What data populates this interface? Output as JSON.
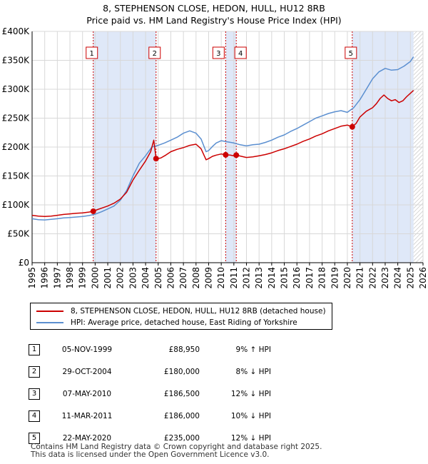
{
  "title_line1": "8, STEPHENSON CLOSE, HEDON, HULL, HU12 8RB",
  "title_line2": "Price paid vs. HM Land Registry's House Price Index (HPI)",
  "colors": {
    "price": "#cc0000",
    "hpi": "#5b8fd0",
    "band": "#dfe8f8",
    "grid": "#d8d8d8",
    "vline": "#cc0000"
  },
  "chart_data": {
    "type": "line",
    "title": "Price paid vs. HM Land Registry's House Price Index (HPI)",
    "xlabel": "",
    "ylabel": "",
    "xlim": [
      1995,
      2026
    ],
    "ylim": [
      0,
      400000
    ],
    "y_ticks": [
      0,
      50000,
      100000,
      150000,
      200000,
      250000,
      300000,
      350000,
      400000
    ],
    "y_tick_labels": [
      "£0",
      "£50K",
      "£100K",
      "£150K",
      "£200K",
      "£250K",
      "£300K",
      "£350K",
      "£400K"
    ],
    "x_ticks": [
      1995,
      1996,
      1997,
      1998,
      1999,
      2000,
      2001,
      2002,
      2003,
      2004,
      2005,
      2006,
      2007,
      2008,
      2009,
      2010,
      2011,
      2012,
      2013,
      2014,
      2015,
      2016,
      2017,
      2018,
      2019,
      2020,
      2021,
      2022,
      2023,
      2024,
      2025,
      2026
    ],
    "grid": true,
    "shaded_bands": [
      [
        1999.85,
        2004.83
      ],
      [
        2010.35,
        2011.19
      ],
      [
        2020.39,
        2025.25
      ]
    ],
    "hatched_region": [
      2025.25,
      2026
    ],
    "series": [
      {
        "name": "8, STEPHENSON CLOSE, HEDON, HULL, HU12 8RB (detached house)",
        "color": "#cc0000",
        "x": [
          1995,
          1995.5,
          1996,
          1996.5,
          1997,
          1997.5,
          1998,
          1998.5,
          1999,
          1999.5,
          1999.85,
          2000.2,
          2000.6,
          2001,
          2001.5,
          2002,
          2002.5,
          2003,
          2003.5,
          2004,
          2004.4,
          2004.65,
          2004.83,
          2005.2,
          2005.6,
          2006,
          2006.5,
          2007,
          2007.5,
          2008,
          2008.4,
          2008.8,
          2009,
          2009.3,
          2009.6,
          2010,
          2010.35,
          2010.7,
          2011,
          2011.19,
          2011.6,
          2012,
          2012.5,
          2013,
          2013.5,
          2014,
          2014.5,
          2015,
          2015.5,
          2016,
          2016.5,
          2017,
          2017.5,
          2018,
          2018.5,
          2019,
          2019.5,
          2020,
          2020.39,
          2020.7,
          2021,
          2021.5,
          2022,
          2022.3,
          2022.6,
          2022.9,
          2023.2,
          2023.5,
          2023.8,
          2024.1,
          2024.4,
          2024.7,
          2025,
          2025.25
        ],
        "y": [
          82000,
          80500,
          80000,
          80500,
          82000,
          83500,
          84500,
          85500,
          86000,
          87500,
          88950,
          92000,
          95000,
          98000,
          103000,
          110000,
          122000,
          143000,
          160000,
          176000,
          192000,
          212000,
          180000,
          181000,
          186000,
          192000,
          196000,
          199000,
          203000,
          205000,
          197000,
          178000,
          180000,
          184000,
          186000,
          188000,
          186500,
          186000,
          185000,
          186000,
          184000,
          182000,
          183000,
          185000,
          187000,
          190000,
          194000,
          197000,
          201000,
          205000,
          210000,
          214000,
          219000,
          223000,
          228000,
          232000,
          236000,
          238000,
          235000,
          241000,
          252000,
          262000,
          268000,
          275000,
          284000,
          290000,
          284000,
          280000,
          282000,
          277000,
          280000,
          287000,
          293000,
          298000
        ]
      },
      {
        "name": "HPI: Average price, detached house, East Riding of Yorkshire",
        "color": "#5b8fd0",
        "x": [
          1995,
          1995.5,
          1996,
          1996.5,
          1997,
          1997.5,
          1998,
          1998.5,
          1999,
          1999.5,
          2000,
          2000.5,
          2001,
          2001.5,
          2002,
          2002.5,
          2003,
          2003.5,
          2004,
          2004.5,
          2005,
          2005.5,
          2006,
          2006.5,
          2007,
          2007.5,
          2008,
          2008.4,
          2008.8,
          2009,
          2009.3,
          2009.6,
          2010,
          2010.5,
          2011,
          2011.5,
          2012,
          2012.5,
          2013,
          2013.5,
          2014,
          2014.5,
          2015,
          2015.5,
          2016,
          2016.5,
          2017,
          2017.5,
          2018,
          2018.5,
          2019,
          2019.5,
          2020,
          2020.5,
          2021,
          2021.5,
          2022,
          2022.5,
          2023,
          2023.5,
          2024,
          2024.5,
          2025,
          2025.25
        ],
        "y": [
          76000,
          74500,
          74000,
          75000,
          76000,
          77500,
          78000,
          79000,
          80000,
          81500,
          84000,
          88000,
          93000,
          98000,
          108000,
          125000,
          150000,
          172000,
          185000,
          200000,
          203000,
          207000,
          212000,
          217000,
          224000,
          228000,
          224000,
          214000,
          192000,
          194000,
          201000,
          207000,
          211000,
          209000,
          207000,
          204000,
          202000,
          204000,
          205000,
          208000,
          212000,
          217000,
          221000,
          227000,
          232000,
          238000,
          244000,
          250000,
          254000,
          258000,
          261000,
          263000,
          260000,
          268000,
          282000,
          300000,
          318000,
          330000,
          336000,
          333000,
          334000,
          340000,
          348000,
          356000
        ]
      }
    ],
    "sale_markers": [
      {
        "num": "1",
        "x": 1999.85,
        "y": 88950
      },
      {
        "num": "2",
        "x": 2004.83,
        "y": 180000
      },
      {
        "num": "3",
        "x": 2010.35,
        "y": 186500
      },
      {
        "num": "4",
        "x": 2011.19,
        "y": 186000
      },
      {
        "num": "5",
        "x": 2020.39,
        "y": 235000
      }
    ]
  },
  "legend": {
    "price_label": "8, STEPHENSON CLOSE, HEDON, HULL, HU12 8RB (detached house)",
    "hpi_label": "HPI: Average price, detached house, East Riding of Yorkshire"
  },
  "sales": [
    {
      "num": "1",
      "date": "05-NOV-1999",
      "price": "£88,950",
      "hpi": "9% ↑ HPI"
    },
    {
      "num": "2",
      "date": "29-OCT-2004",
      "price": "£180,000",
      "hpi": "8% ↓ HPI"
    },
    {
      "num": "3",
      "date": "07-MAY-2010",
      "price": "£186,500",
      "hpi": "12% ↓ HPI"
    },
    {
      "num": "4",
      "date": "11-MAR-2011",
      "price": "£186,000",
      "hpi": "10% ↓ HPI"
    },
    {
      "num": "5",
      "date": "22-MAY-2020",
      "price": "£235,000",
      "hpi": "12% ↓ HPI"
    }
  ],
  "footer": {
    "line1": "Contains HM Land Registry data © Crown copyright and database right 2025.",
    "line2": "This data is licensed under the Open Government Licence v3.0."
  }
}
